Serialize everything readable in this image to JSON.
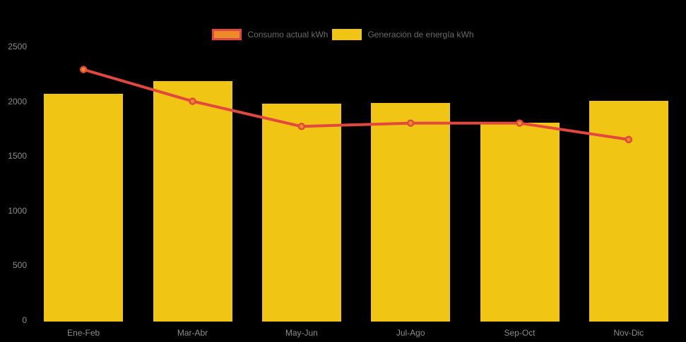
{
  "app": {
    "background": "#000000"
  },
  "legend": {
    "position": "top",
    "text_color": "#6B6B6B",
    "items": [
      {
        "id": "consumo",
        "label": "Consumo actual kWh",
        "swatch_fill": "#ED8B29",
        "swatch_border": "#E2483D"
      },
      {
        "id": "generacion",
        "label": "Generación de energía kWh",
        "swatch_fill": "#F0C513",
        "swatch_border": "#F0C513"
      }
    ]
  },
  "chart_data": {
    "type": "bar",
    "subtype": "bar-line-combo",
    "title": "",
    "xlabel": "",
    "ylabel": "",
    "categories": [
      "Ene-Feb",
      "Mar-Abr",
      "May-Jun",
      "Jul-Ago",
      "Sep-Oct",
      "Nov-Dic"
    ],
    "series": [
      {
        "name": "Consumo actual kWh",
        "type": "line",
        "line_color": "#E2483D",
        "point_fill": "#ED8B29",
        "values": [
          2290,
          2000,
          1770,
          1800,
          1800,
          1650
        ]
      },
      {
        "name": "Generación de energía kWh",
        "type": "bar",
        "bar_color": "#F0C513",
        "values": [
          2080,
          2200,
          1990,
          2000,
          1815,
          2015
        ]
      }
    ],
    "ylim": [
      0,
      2500
    ],
    "yticks": [
      0,
      500,
      1000,
      1500,
      2000,
      2500
    ],
    "grid": false,
    "legend_position": "top",
    "tick_color": "#8C8C8C"
  }
}
